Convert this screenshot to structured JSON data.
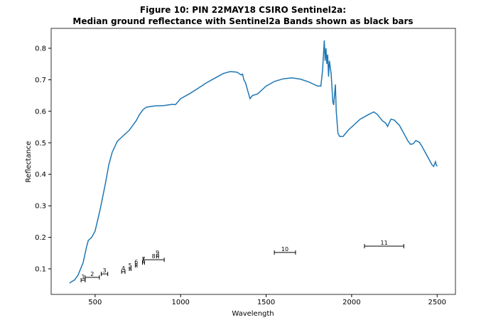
{
  "chart_data": {
    "type": "line",
    "title": "Figure 10: PIN 22MAY18 CSIRO Sentinel2a:",
    "subtitle": "Median ground reflectance with Sentinel2a Bands shown as black bars",
    "xlabel": "Wavelength",
    "ylabel": "Reflectance",
    "x": [
      350,
      380,
      400,
      430,
      450,
      460,
      480,
      500,
      530,
      560,
      580,
      600,
      630,
      650,
      700,
      740,
      760,
      780,
      800,
      850,
      900,
      950,
      970,
      1000,
      1050,
      1100,
      1150,
      1200,
      1250,
      1290,
      1330,
      1355,
      1362,
      1370,
      1380,
      1395,
      1406,
      1420,
      1450,
      1480,
      1500,
      1550,
      1600,
      1650,
      1700,
      1750,
      1800,
      1820,
      1830,
      1840,
      1845,
      1850,
      1855,
      1860,
      1865,
      1870,
      1880,
      1890,
      1895,
      1905,
      1910,
      1920,
      1930,
      1950,
      1980,
      2000,
      2050,
      2100,
      2130,
      2150,
      2180,
      2200,
      2210,
      2230,
      2250,
      2280,
      2310,
      2330,
      2345,
      2360,
      2375,
      2395,
      2410,
      2430,
      2450,
      2470,
      2480,
      2490,
      2495,
      2500
    ],
    "values": [
      0.055,
      0.065,
      0.08,
      0.12,
      0.17,
      0.19,
      0.2,
      0.22,
      0.29,
      0.37,
      0.43,
      0.47,
      0.505,
      0.515,
      0.54,
      0.57,
      0.59,
      0.605,
      0.613,
      0.617,
      0.618,
      0.622,
      0.621,
      0.64,
      0.655,
      0.672,
      0.69,
      0.705,
      0.72,
      0.726,
      0.724,
      0.715,
      0.718,
      0.7,
      0.69,
      0.66,
      0.64,
      0.65,
      0.655,
      0.67,
      0.68,
      0.695,
      0.703,
      0.706,
      0.702,
      0.693,
      0.68,
      0.68,
      0.73,
      0.825,
      0.76,
      0.8,
      0.75,
      0.78,
      0.71,
      0.76,
      0.72,
      0.63,
      0.62,
      0.685,
      0.6,
      0.53,
      0.52,
      0.52,
      0.54,
      0.55,
      0.575,
      0.59,
      0.598,
      0.59,
      0.57,
      0.562,
      0.552,
      0.575,
      0.572,
      0.555,
      0.525,
      0.505,
      0.495,
      0.497,
      0.507,
      0.502,
      0.49,
      0.47,
      0.45,
      0.43,
      0.425,
      0.44,
      0.43,
      0.425
    ],
    "color": "#1f77b4",
    "bands": {
      "labels": [
        "1",
        "2",
        "3",
        "4",
        "5",
        "6",
        "7",
        "8",
        "9",
        "10",
        "11"
      ],
      "centers": [
        430,
        483,
        555,
        665,
        705,
        740,
        783,
        842,
        865,
        1610,
        2190
      ],
      "half_widths": [
        12,
        42,
        19,
        10,
        5,
        5,
        6,
        62,
        6,
        62,
        115
      ],
      "y": [
        0.064,
        0.073,
        0.084,
        0.091,
        0.1,
        0.111,
        0.12,
        0.129,
        0.14,
        0.152,
        0.172
      ],
      "color": "#000000"
    },
    "xlim": [
      243,
      2607
    ],
    "ylim": [
      0.019,
      0.863
    ],
    "xticks": [
      500,
      1000,
      1500,
      2000,
      2500
    ],
    "yticks": [
      0.1,
      0.2,
      0.3,
      0.4,
      0.5,
      0.6,
      0.7,
      0.8
    ]
  }
}
